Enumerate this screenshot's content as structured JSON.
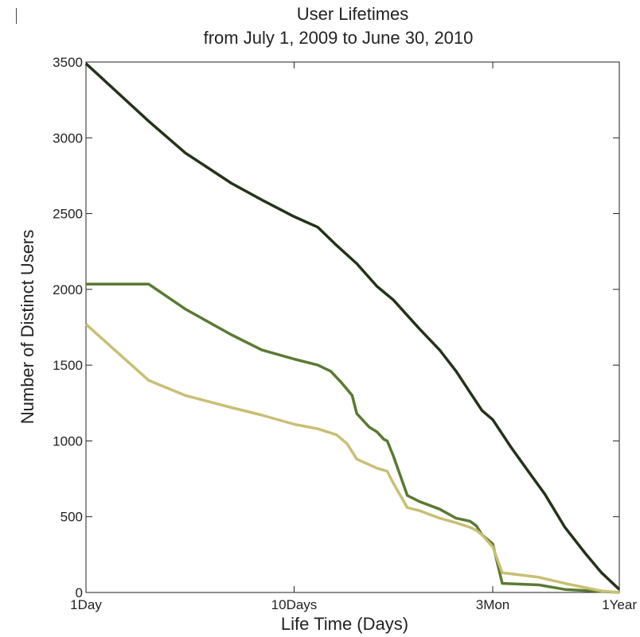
{
  "chart_data": {
    "type": "line",
    "title": "User Lifetimes",
    "subtitle": "from July 1, 2009 to June 30, 2010",
    "xlabel": "Life Time (Days)",
    "ylabel": "Number of Distinct Users",
    "x_scale": "log",
    "xlim": [
      1,
      365
    ],
    "ylim": [
      0,
      3500
    ],
    "x_ticks": [
      {
        "value": 1,
        "label": "1Day"
      },
      {
        "value": 10,
        "label": "10Days"
      },
      {
        "value": 90,
        "label": "3Mon"
      },
      {
        "value": 365,
        "label": "1Year"
      }
    ],
    "y_ticks": [
      0,
      500,
      1000,
      1500,
      2000,
      2500,
      3000,
      3500
    ],
    "grid": false,
    "series": [
      {
        "color": "#243318",
        "x": [
          1,
          2,
          3,
          5,
          7,
          10,
          13,
          16,
          20,
          25,
          30,
          40,
          50,
          60,
          70,
          80,
          90,
          110,
          130,
          160,
          200,
          250,
          300,
          365
        ],
        "y": [
          3490,
          3110,
          2900,
          2700,
          2590,
          2480,
          2410,
          2290,
          2170,
          2020,
          1930,
          1740,
          1600,
          1460,
          1320,
          1200,
          1140,
          960,
          820,
          650,
          430,
          260,
          130,
          20
        ]
      },
      {
        "color": "#5a7a32",
        "x": [
          1,
          2,
          3,
          5,
          7,
          10,
          13,
          15,
          17,
          19,
          20,
          23,
          25,
          27,
          28,
          30,
          35,
          40,
          50,
          60,
          70,
          75,
          80,
          90,
          100,
          150,
          200,
          365
        ],
        "y": [
          2035,
          2035,
          1870,
          1700,
          1600,
          1540,
          1500,
          1460,
          1380,
          1300,
          1180,
          1090,
          1060,
          1010,
          1000,
          900,
          640,
          600,
          550,
          490,
          470,
          440,
          380,
          320,
          60,
          50,
          20,
          0
        ]
      },
      {
        "color": "#c9bf74",
        "x": [
          1,
          2,
          3,
          5,
          7,
          10,
          13,
          16,
          18,
          20,
          25,
          28,
          30,
          35,
          40,
          50,
          60,
          70,
          75,
          80,
          90,
          100,
          150,
          200,
          300,
          365
        ],
        "y": [
          1770,
          1400,
          1300,
          1220,
          1170,
          1110,
          1080,
          1040,
          980,
          880,
          820,
          800,
          720,
          560,
          540,
          490,
          460,
          430,
          410,
          380,
          300,
          130,
          100,
          60,
          10,
          0
        ]
      }
    ]
  }
}
